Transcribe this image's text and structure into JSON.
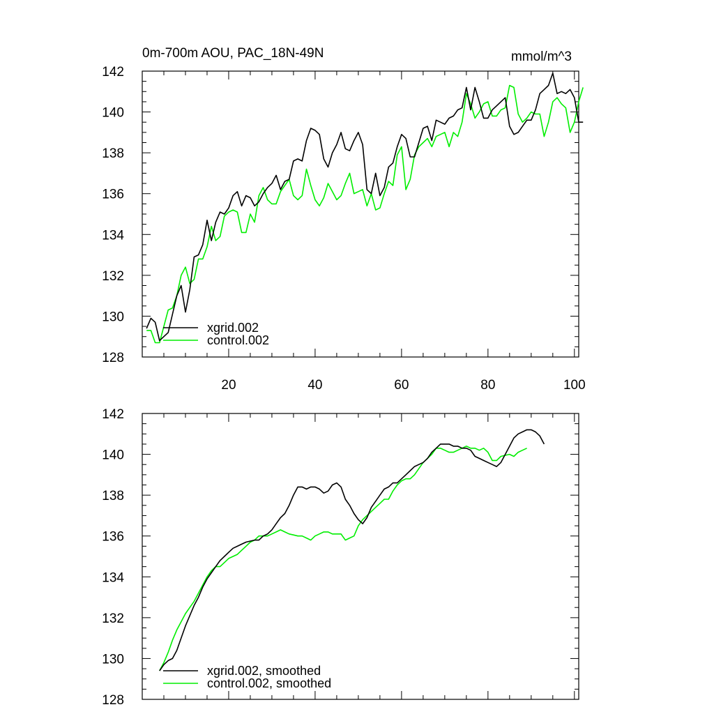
{
  "chart_data": [
    {
      "type": "line",
      "title": "0m-700m AOU, PAC_18N-49N",
      "units_label": "mmol/m^3",
      "xlim": [
        0,
        101
      ],
      "ylim": [
        128,
        142
      ],
      "y_ticks": [
        128,
        130,
        132,
        134,
        136,
        138,
        140,
        142
      ],
      "x_ticks": [
        20,
        40,
        60,
        80,
        100
      ],
      "x_tick_labels": [
        "20",
        "40",
        "60",
        "80",
        "100"
      ],
      "legend_position": "bottom-left",
      "series": [
        {
          "name": "xgrid.002",
          "color": "#000000",
          "values": [
            129.4,
            129.9,
            129.7,
            128.8,
            129.0,
            129.2,
            130.1,
            131.0,
            131.5,
            130.2,
            131.3,
            132.9,
            133.0,
            133.5,
            134.7,
            133.7,
            134.6,
            135.1,
            135.0,
            135.3,
            135.9,
            136.1,
            135.4,
            135.9,
            135.8,
            135.4,
            135.6,
            136.0,
            136.3,
            136.5,
            136.9,
            136.2,
            136.6,
            136.7,
            137.6,
            137.7,
            137.6,
            138.6,
            139.2,
            139.1,
            138.9,
            137.7,
            137.3,
            138.0,
            138.4,
            139.0,
            138.2,
            138.1,
            138.6,
            139.0,
            138.4,
            136.2,
            136.0,
            137.0,
            135.9,
            136.3,
            137.3,
            137.5,
            138.3,
            138.9,
            138.7,
            137.8,
            137.8,
            138.5,
            139.2,
            139.3,
            138.6,
            139.6,
            139.5,
            139.4,
            139.7,
            139.8,
            140.1,
            140.2,
            141.2,
            140.1,
            141.2,
            140.5,
            139.7,
            139.7,
            140.1,
            140.3,
            140.5,
            140.7,
            139.3,
            138.9,
            139.0,
            139.3,
            139.6,
            139.6,
            140.1,
            140.9,
            141.1,
            141.3,
            141.9,
            140.9,
            141.0,
            140.9,
            141.1,
            140.7,
            139.5,
            139.5
          ]
        },
        {
          "name": "control.002",
          "color": "#00ee00",
          "values": [
            129.3,
            129.3,
            128.7,
            128.7,
            129.5,
            130.3,
            130.4,
            131.0,
            132.0,
            132.4,
            131.6,
            131.8,
            132.8,
            132.8,
            133.4,
            134.4,
            133.7,
            133.9,
            134.9,
            135.1,
            135.2,
            135.1,
            134.1,
            134.1,
            135.0,
            134.6,
            135.9,
            136.3,
            135.7,
            135.5,
            135.5,
            136.1,
            136.4,
            136.7,
            135.9,
            135.7,
            135.9,
            137.2,
            136.4,
            135.7,
            135.4,
            135.8,
            136.5,
            136.1,
            135.7,
            135.9,
            136.5,
            137.0,
            136.0,
            136.1,
            136.2,
            135.4,
            136.0,
            135.2,
            135.3,
            136.0,
            136.6,
            136.4,
            137.9,
            138.3,
            136.2,
            136.7,
            137.9,
            138.3,
            138.5,
            138.7,
            138.3,
            138.8,
            138.9,
            139.0,
            138.3,
            139.0,
            138.8,
            139.5,
            140.9,
            140.4,
            139.7,
            140.0,
            140.4,
            140.5,
            139.8,
            139.8,
            140.1,
            140.2,
            141.3,
            141.2,
            139.9,
            139.5,
            139.7,
            140.0,
            139.9,
            139.9,
            138.8,
            139.5,
            140.5,
            140.7,
            140.4,
            140.2,
            139.0,
            139.5,
            140.5,
            141.2
          ]
        }
      ]
    },
    {
      "type": "line",
      "title": "",
      "units_label": "",
      "xlim": [
        0,
        101
      ],
      "ylim": [
        128,
        142
      ],
      "y_ticks": [
        128,
        130,
        132,
        134,
        136,
        138,
        140,
        142
      ],
      "x_ticks": [
        20,
        40,
        60,
        80,
        100
      ],
      "x_tick_labels": [],
      "legend_position": "bottom-left",
      "series": [
        {
          "name": "xgrid.002, smoothed",
          "color": "#000000",
          "x_start": 4,
          "values": [
            129.4,
            129.7,
            129.9,
            130.0,
            130.4,
            131.0,
            131.6,
            132.1,
            132.6,
            133.0,
            133.5,
            133.9,
            134.2,
            134.5,
            134.8,
            135.0,
            135.2,
            135.4,
            135.5,
            135.6,
            135.7,
            135.75,
            135.8,
            135.8,
            136.0,
            136.1,
            136.3,
            136.6,
            136.9,
            137.1,
            137.5,
            138.0,
            138.4,
            138.4,
            138.3,
            138.4,
            138.4,
            138.3,
            138.1,
            138.2,
            138.5,
            138.6,
            138.4,
            137.8,
            137.5,
            137.1,
            136.8,
            136.6,
            136.9,
            137.4,
            137.7,
            138.0,
            138.3,
            138.4,
            138.6,
            138.6,
            138.8,
            139.0,
            139.2,
            139.4,
            139.5,
            139.6,
            139.8,
            140.1,
            140.3,
            140.5,
            140.5,
            140.5,
            140.4,
            140.4,
            140.3,
            140.3,
            140.2,
            139.9,
            139.8,
            139.7,
            139.6,
            139.5,
            139.4,
            139.6,
            140.0,
            140.4,
            140.8,
            141.0,
            141.1,
            141.2,
            141.2,
            141.1,
            140.9,
            140.5
          ]
        },
        {
          "name": "control.002, smoothed",
          "color": "#00ee00",
          "x_start": 4,
          "values": [
            129.4,
            129.8,
            130.3,
            130.9,
            131.4,
            131.8,
            132.2,
            132.5,
            132.8,
            133.2,
            133.6,
            134.0,
            134.3,
            134.5,
            134.5,
            134.7,
            134.9,
            135.0,
            135.1,
            135.3,
            135.5,
            135.7,
            135.8,
            136.0,
            136.0,
            136.0,
            136.1,
            136.2,
            136.3,
            136.2,
            136.1,
            136.05,
            136.0,
            136.0,
            135.9,
            135.8,
            136.0,
            136.1,
            136.2,
            136.2,
            136.1,
            136.1,
            136.1,
            135.8,
            135.9,
            136.0,
            136.5,
            136.8,
            137.0,
            137.2,
            137.4,
            137.6,
            137.8,
            137.8,
            138.2,
            138.5,
            138.7,
            138.8,
            138.8,
            139.0,
            139.3,
            139.6,
            139.8,
            140.0,
            140.3,
            140.3,
            140.2,
            140.1,
            140.1,
            140.2,
            140.3,
            140.4,
            140.3,
            140.3,
            140.2,
            140.3,
            140.1,
            139.7,
            139.7,
            139.9,
            139.95,
            140.0,
            139.9,
            140.1,
            140.2,
            140.3
          ]
        }
      ]
    }
  ]
}
